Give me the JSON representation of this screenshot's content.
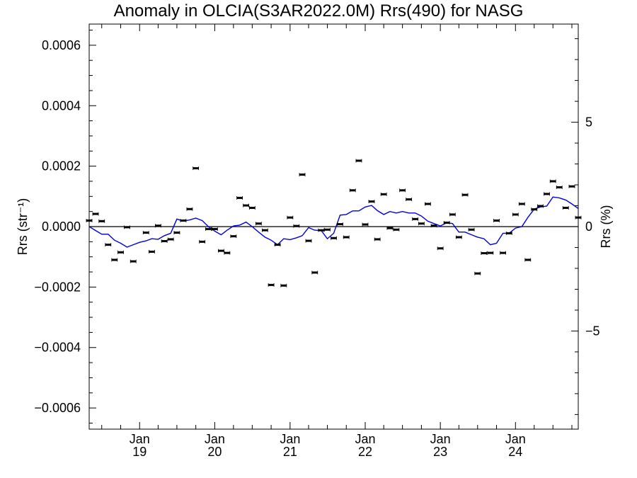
{
  "chart_data": {
    "type": "scatter",
    "title": "Anomaly in OLCIA(S3AR2022.0M) Rrs(490) for NASG",
    "ylabel": "Rrs (str⁻¹)",
    "ylabel_right": "Rrs (%)",
    "ylim": [
      -0.00067,
      0.00067
    ],
    "ylim_right": [
      -9.7,
      9.7
    ],
    "xlim": [
      "2018-05-01",
      "2024-11-01"
    ],
    "y_ticks": [
      {
        "value": 0.0006,
        "label": "0.0006"
      },
      {
        "value": 0.0004,
        "label": "0.0004"
      },
      {
        "value": 0.0002,
        "label": "0.0002"
      },
      {
        "value": 0.0,
        "label": "0.0000"
      },
      {
        "value": -0.0002,
        "label": "−0.0002"
      },
      {
        "value": -0.0004,
        "label": "−0.0004"
      },
      {
        "value": -0.0006,
        "label": "−0.0006"
      }
    ],
    "y_ticks_right": [
      {
        "value": 5,
        "label": "5"
      },
      {
        "value": 0,
        "label": "0"
      },
      {
        "value": -5,
        "label": "−5"
      }
    ],
    "x_ticks": [
      {
        "date": "2019-01-01",
        "month": "Jan",
        "year": "19"
      },
      {
        "date": "2020-01-01",
        "month": "Jan",
        "year": "20"
      },
      {
        "date": "2021-01-01",
        "month": "Jan",
        "year": "21"
      },
      {
        "date": "2022-01-01",
        "month": "Jan",
        "year": "22"
      },
      {
        "date": "2023-01-01",
        "month": "Jan",
        "year": "23"
      },
      {
        "date": "2024-01-01",
        "month": "Jan",
        "year": "24"
      }
    ],
    "colors": {
      "points": "#000000",
      "line": "#0000dd",
      "zero_line": "#000000"
    },
    "series": [
      {
        "type": "scatter",
        "points": [
          {
            "x": "2018-05-01",
            "y": 2e-05
          },
          {
            "x": "2018-06-01",
            "y": 4.2e-05
          },
          {
            "x": "2018-07-01",
            "y": 1.8e-05
          },
          {
            "x": "2018-08-01",
            "y": -6e-05
          },
          {
            "x": "2018-09-01",
            "y": -0.00011
          },
          {
            "x": "2018-10-01",
            "y": -8.5e-05
          },
          {
            "x": "2018-11-01",
            "y": -2e-06
          },
          {
            "x": "2018-12-01",
            "y": -0.000115
          },
          {
            "x": "2019-02-01",
            "y": -2e-05
          },
          {
            "x": "2019-03-01",
            "y": -8.3e-05
          },
          {
            "x": "2019-04-01",
            "y": 3e-06
          },
          {
            "x": "2019-05-01",
            "y": -4.8e-05
          },
          {
            "x": "2019-06-01",
            "y": -4.2e-05
          },
          {
            "x": "2019-07-01",
            "y": -2e-05
          },
          {
            "x": "2019-08-01",
            "y": 2e-05
          },
          {
            "x": "2019-09-01",
            "y": 5.8e-05
          },
          {
            "x": "2019-10-01",
            "y": 0.000193
          },
          {
            "x": "2019-11-01",
            "y": -5e-05
          },
          {
            "x": "2019-12-01",
            "y": -8e-06
          },
          {
            "x": "2020-01-01",
            "y": -8e-06
          },
          {
            "x": "2020-02-01",
            "y": -8e-05
          },
          {
            "x": "2020-03-01",
            "y": -8.7e-05
          },
          {
            "x": "2020-04-01",
            "y": -3.2e-05
          },
          {
            "x": "2020-05-01",
            "y": 9.5e-05
          },
          {
            "x": "2020-06-01",
            "y": 7e-05
          },
          {
            "x": "2020-07-01",
            "y": 6.2e-05
          },
          {
            "x": "2020-08-01",
            "y": 1e-05
          },
          {
            "x": "2020-09-01",
            "y": -1.2e-05
          },
          {
            "x": "2020-10-01",
            "y": -0.000193
          },
          {
            "x": "2020-11-01",
            "y": -6e-05
          },
          {
            "x": "2020-12-01",
            "y": -0.000195
          },
          {
            "x": "2021-01-01",
            "y": 3e-05
          },
          {
            "x": "2021-02-01",
            "y": 2e-06
          },
          {
            "x": "2021-03-01",
            "y": 0.000172
          },
          {
            "x": "2021-04-01",
            "y": -4.7e-05
          },
          {
            "x": "2021-05-01",
            "y": -0.000152
          },
          {
            "x": "2021-06-01",
            "y": -1.2e-05
          },
          {
            "x": "2021-07-01",
            "y": -1e-05
          },
          {
            "x": "2021-08-01",
            "y": -3.8e-05
          },
          {
            "x": "2021-09-01",
            "y": 8e-06
          },
          {
            "x": "2021-10-01",
            "y": -3.5e-05
          },
          {
            "x": "2021-11-01",
            "y": 0.00012
          },
          {
            "x": "2021-12-01",
            "y": 0.000218
          },
          {
            "x": "2022-01-01",
            "y": 7e-06
          },
          {
            "x": "2022-02-01",
            "y": 8.3e-05
          },
          {
            "x": "2022-03-01",
            "y": -4.2e-05
          },
          {
            "x": "2022-04-01",
            "y": 0.000107
          },
          {
            "x": "2022-05-01",
            "y": -5e-06
          },
          {
            "x": "2022-06-01",
            "y": -1e-05
          },
          {
            "x": "2022-07-01",
            "y": 0.00012
          },
          {
            "x": "2022-08-01",
            "y": 9e-05
          },
          {
            "x": "2022-09-01",
            "y": 2.5e-05
          },
          {
            "x": "2022-10-01",
            "y": 1e-05
          },
          {
            "x": "2022-11-01",
            "y": 7.5e-05
          },
          {
            "x": "2022-12-01",
            "y": 3e-06
          },
          {
            "x": "2023-01-01",
            "y": -7.2e-05
          },
          {
            "x": "2023-02-01",
            "y": 1.3e-05
          },
          {
            "x": "2023-03-01",
            "y": 4e-05
          },
          {
            "x": "2023-04-01",
            "y": -3.5e-05
          },
          {
            "x": "2023-05-01",
            "y": 0.000105
          },
          {
            "x": "2023-06-01",
            "y": -1e-05
          },
          {
            "x": "2023-07-01",
            "y": -0.000155
          },
          {
            "x": "2023-08-01",
            "y": -8.8e-05
          },
          {
            "x": "2023-09-01",
            "y": -8.7e-05
          },
          {
            "x": "2023-10-01",
            "y": 2e-05
          },
          {
            "x": "2023-11-01",
            "y": -8.7e-05
          },
          {
            "x": "2023-12-01",
            "y": -2.2e-05
          },
          {
            "x": "2024-01-01",
            "y": 4e-05
          },
          {
            "x": "2024-02-01",
            "y": 7.5e-05
          },
          {
            "x": "2024-03-01",
            "y": -0.00011
          },
          {
            "x": "2024-04-01",
            "y": 5.7e-05
          },
          {
            "x": "2024-05-01",
            "y": 6.8e-05
          },
          {
            "x": "2024-06-01",
            "y": 0.000108
          },
          {
            "x": "2024-07-01",
            "y": 0.00015
          },
          {
            "x": "2024-08-01",
            "y": 0.00013
          },
          {
            "x": "2024-09-01",
            "y": 6.2e-05
          },
          {
            "x": "2024-10-01",
            "y": 0.000133
          },
          {
            "x": "2024-11-01",
            "y": 3e-05
          }
        ]
      },
      {
        "type": "line",
        "points": [
          {
            "x": "2018-05-01",
            "y": 0.0
          },
          {
            "x": "2018-06-01",
            "y": -1.3e-05
          },
          {
            "x": "2018-07-01",
            "y": -2.5e-05
          },
          {
            "x": "2018-08-01",
            "y": -2.5e-05
          },
          {
            "x": "2018-09-01",
            "y": -4.5e-05
          },
          {
            "x": "2018-10-01",
            "y": -5.5e-05
          },
          {
            "x": "2018-11-01",
            "y": -6.8e-05
          },
          {
            "x": "2018-12-01",
            "y": -6e-05
          },
          {
            "x": "2019-01-01",
            "y": -5.2e-05
          },
          {
            "x": "2019-02-01",
            "y": -4.7e-05
          },
          {
            "x": "2019-03-01",
            "y": -4e-05
          },
          {
            "x": "2019-04-01",
            "y": -4.2e-05
          },
          {
            "x": "2019-05-01",
            "y": -3e-05
          },
          {
            "x": "2019-06-01",
            "y": -2.2e-05
          },
          {
            "x": "2019-07-01",
            "y": 2.5e-05
          },
          {
            "x": "2019-08-01",
            "y": 1.8e-05
          },
          {
            "x": "2019-09-01",
            "y": 2.2e-05
          },
          {
            "x": "2019-10-01",
            "y": 2.8e-05
          },
          {
            "x": "2019-11-01",
            "y": 2e-05
          },
          {
            "x": "2019-12-01",
            "y": 0.0
          },
          {
            "x": "2020-01-01",
            "y": -1.5e-05
          },
          {
            "x": "2020-02-01",
            "y": -2.7e-05
          },
          {
            "x": "2020-03-01",
            "y": -1.2e-05
          },
          {
            "x": "2020-04-01",
            "y": 2e-06
          },
          {
            "x": "2020-05-01",
            "y": 5e-06
          },
          {
            "x": "2020-06-01",
            "y": 1.5e-05
          },
          {
            "x": "2020-07-01",
            "y": 0.0
          },
          {
            "x": "2020-08-01",
            "y": -1.8e-05
          },
          {
            "x": "2020-09-01",
            "y": -3.5e-05
          },
          {
            "x": "2020-10-01",
            "y": -4.5e-05
          },
          {
            "x": "2020-11-01",
            "y": -6e-05
          },
          {
            "x": "2020-12-01",
            "y": -4e-05
          },
          {
            "x": "2021-01-01",
            "y": -4.3e-05
          },
          {
            "x": "2021-02-01",
            "y": -3.7e-05
          },
          {
            "x": "2021-03-01",
            "y": -3e-05
          },
          {
            "x": "2021-04-01",
            "y": -3e-06
          },
          {
            "x": "2021-05-01",
            "y": -1.2e-05
          },
          {
            "x": "2021-06-01",
            "y": -1.3e-05
          },
          {
            "x": "2021-07-01",
            "y": -4e-05
          },
          {
            "x": "2021-08-01",
            "y": -2.2e-05
          },
          {
            "x": "2021-09-01",
            "y": 3.8e-05
          },
          {
            "x": "2021-10-01",
            "y": 4e-05
          },
          {
            "x": "2021-11-01",
            "y": 5.2e-05
          },
          {
            "x": "2021-12-01",
            "y": 5.2e-05
          },
          {
            "x": "2022-01-01",
            "y": 6.5e-05
          },
          {
            "x": "2022-02-01",
            "y": 7e-05
          },
          {
            "x": "2022-03-01",
            "y": 5.3e-05
          },
          {
            "x": "2022-04-01",
            "y": 4e-05
          },
          {
            "x": "2022-05-01",
            "y": 5e-05
          },
          {
            "x": "2022-06-01",
            "y": 4.5e-05
          },
          {
            "x": "2022-07-01",
            "y": 5e-05
          },
          {
            "x": "2022-08-01",
            "y": 4.5e-05
          },
          {
            "x": "2022-09-01",
            "y": 4.5e-05
          },
          {
            "x": "2022-10-01",
            "y": 3.5e-05
          },
          {
            "x": "2022-11-01",
            "y": 1.8e-05
          },
          {
            "x": "2022-12-01",
            "y": 1e-05
          },
          {
            "x": "2023-01-01",
            "y": 2e-06
          },
          {
            "x": "2023-02-01",
            "y": 1.3e-05
          },
          {
            "x": "2023-03-01",
            "y": 1e-05
          },
          {
            "x": "2023-04-01",
            "y": -1.8e-05
          },
          {
            "x": "2023-05-01",
            "y": -1.8e-05
          },
          {
            "x": "2023-06-01",
            "y": -2.7e-05
          },
          {
            "x": "2023-07-01",
            "y": -3.5e-05
          },
          {
            "x": "2023-08-01",
            "y": -4e-05
          },
          {
            "x": "2023-09-01",
            "y": -6e-05
          },
          {
            "x": "2023-10-01",
            "y": -5.5e-05
          },
          {
            "x": "2023-11-01",
            "y": -2.2e-05
          },
          {
            "x": "2023-12-01",
            "y": -2.2e-05
          },
          {
            "x": "2024-01-01",
            "y": -5e-06
          },
          {
            "x": "2024-02-01",
            "y": 0.0
          },
          {
            "x": "2024-03-01",
            "y": 3e-05
          },
          {
            "x": "2024-04-01",
            "y": 5.8e-05
          },
          {
            "x": "2024-05-01",
            "y": 6.5e-05
          },
          {
            "x": "2024-06-01",
            "y": 6.8e-05
          },
          {
            "x": "2024-07-01",
            "y": 9.8e-05
          },
          {
            "x": "2024-08-01",
            "y": 9.5e-05
          },
          {
            "x": "2024-09-01",
            "y": 8.8e-05
          },
          {
            "x": "2024-10-01",
            "y": 7.5e-05
          },
          {
            "x": "2024-11-01",
            "y": 6e-05
          }
        ]
      }
    ]
  }
}
